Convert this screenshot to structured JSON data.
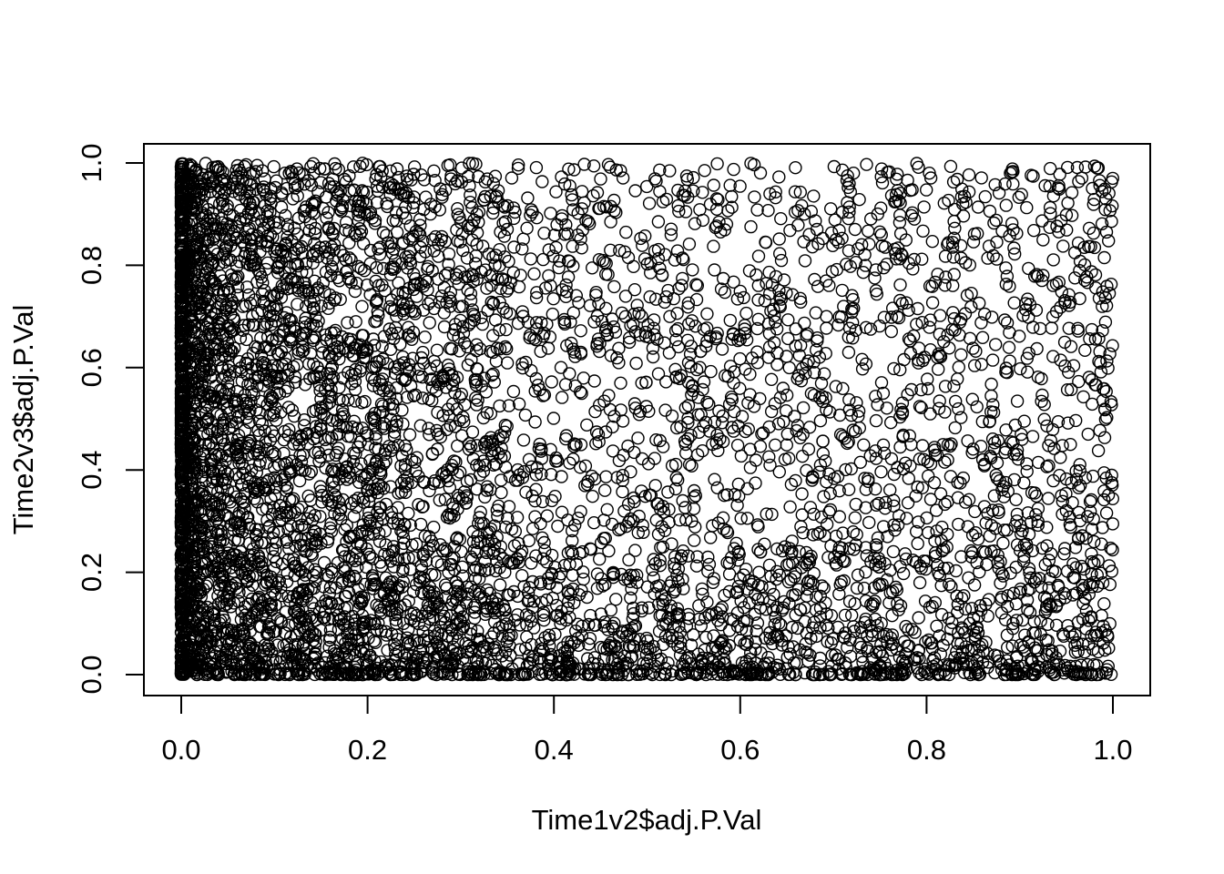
{
  "chart_data": {
    "type": "scatter",
    "title": "",
    "xlabel": "Time1v2$adj.P.Val",
    "ylabel": "Time2v3$adj.P.Val",
    "xlim": [
      0,
      1
    ],
    "ylim": [
      0,
      1
    ],
    "xticks": [
      "0.0",
      "0.2",
      "0.4",
      "0.6",
      "0.8",
      "1.0"
    ],
    "yticks": [
      "0.0",
      "0.2",
      "0.4",
      "0.6",
      "0.8",
      "1.0"
    ],
    "marker": "open-circle",
    "marker_color": "#000000",
    "grid": false,
    "legend": "none",
    "distribution": {
      "description_values": "uniform background over [0,1]x[0,1] with heavy concentration near x=0 and near y=0",
      "uniform_points": 3200,
      "x_near_zero_points": 2600,
      "y_near_zero_points": 1200
    }
  }
}
